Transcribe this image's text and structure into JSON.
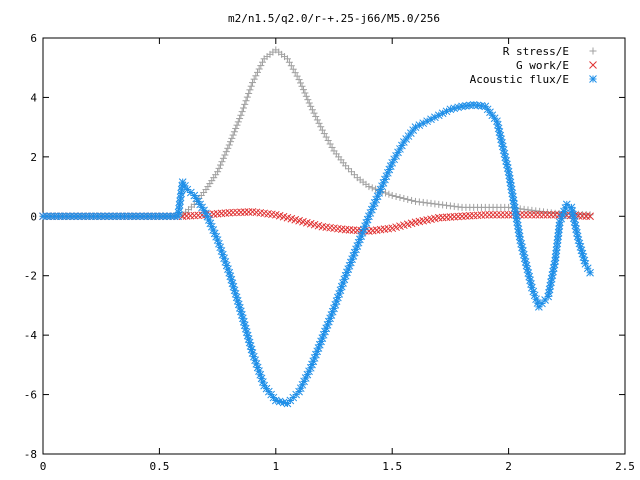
{
  "chart_data": {
    "type": "scatter",
    "title": "m2/n1.5/q2.0/r-+.25-j66/M5.0/256",
    "xlim": [
      0,
      2.5
    ],
    "ylim": [
      -8,
      6
    ],
    "xticks": [
      0,
      0.5,
      1,
      1.5,
      2,
      2.5
    ],
    "xtick_labels": [
      "0",
      "0.5",
      "1",
      "1.5",
      "2",
      "2.5"
    ],
    "yticks": [
      -8,
      -6,
      -4,
      -2,
      0,
      2,
      4,
      6
    ],
    "ytick_labels": [
      "-8",
      "-6",
      "-4",
      "-2",
      "0",
      "2",
      "4",
      "6"
    ],
    "grid": false,
    "legend_position": "top-right",
    "series": [
      {
        "name": "R stress/E",
        "marker": "plus",
        "color": "#a0a0a0",
        "x": [
          0.0,
          0.1,
          0.2,
          0.3,
          0.4,
          0.5,
          0.58,
          0.6,
          0.65,
          0.7,
          0.75,
          0.8,
          0.85,
          0.9,
          0.95,
          1.0,
          1.05,
          1.1,
          1.15,
          1.2,
          1.25,
          1.3,
          1.35,
          1.4,
          1.5,
          1.6,
          1.7,
          1.8,
          1.9,
          2.0,
          2.1,
          2.2,
          2.35
        ],
        "y": [
          0.0,
          0.0,
          0.0,
          0.0,
          0.0,
          0.0,
          0.0,
          0.05,
          0.4,
          0.9,
          1.5,
          2.4,
          3.4,
          4.5,
          5.3,
          5.6,
          5.3,
          4.6,
          3.7,
          2.9,
          2.2,
          1.7,
          1.3,
          1.0,
          0.7,
          0.5,
          0.4,
          0.3,
          0.3,
          0.3,
          0.2,
          0.1,
          0.05
        ]
      },
      {
        "name": "G work/E",
        "marker": "cross",
        "color": "#e03030",
        "x": [
          0.0,
          0.1,
          0.2,
          0.3,
          0.4,
          0.5,
          0.58,
          0.6,
          0.7,
          0.8,
          0.9,
          1.0,
          1.1,
          1.2,
          1.3,
          1.4,
          1.5,
          1.6,
          1.7,
          1.8,
          1.9,
          2.0,
          2.1,
          2.2,
          2.35
        ],
        "y": [
          0.0,
          0.0,
          0.0,
          0.0,
          0.0,
          0.0,
          0.0,
          0.0,
          0.05,
          0.12,
          0.15,
          0.05,
          -0.15,
          -0.35,
          -0.45,
          -0.5,
          -0.4,
          -0.2,
          -0.05,
          0.0,
          0.05,
          0.05,
          0.05,
          0.05,
          0.0
        ]
      },
      {
        "name": "Acoustic flux/E",
        "marker": "star",
        "color": "#1f8fe8",
        "x": [
          0.0,
          0.1,
          0.2,
          0.3,
          0.4,
          0.5,
          0.58,
          0.6,
          0.62,
          0.65,
          0.7,
          0.75,
          0.8,
          0.85,
          0.9,
          0.95,
          1.0,
          1.05,
          1.1,
          1.15,
          1.2,
          1.25,
          1.3,
          1.35,
          1.4,
          1.45,
          1.5,
          1.55,
          1.6,
          1.65,
          1.7,
          1.75,
          1.8,
          1.85,
          1.9,
          1.95,
          2.0,
          2.05,
          2.1,
          2.13,
          2.17,
          2.2,
          2.22,
          2.25,
          2.27,
          2.3,
          2.33,
          2.35
        ],
        "y": [
          0.0,
          0.0,
          0.0,
          0.0,
          0.0,
          0.0,
          0.0,
          1.15,
          0.9,
          0.7,
          0.1,
          -0.8,
          -1.9,
          -3.2,
          -4.6,
          -5.7,
          -6.2,
          -6.3,
          -5.9,
          -5.1,
          -4.1,
          -3.1,
          -2.0,
          -1.0,
          0.0,
          0.9,
          1.8,
          2.5,
          3.0,
          3.2,
          3.4,
          3.6,
          3.7,
          3.75,
          3.7,
          3.2,
          1.5,
          -0.8,
          -2.4,
          -3.05,
          -2.7,
          -1.5,
          -0.2,
          0.4,
          0.3,
          -0.8,
          -1.6,
          -1.9
        ]
      }
    ]
  }
}
